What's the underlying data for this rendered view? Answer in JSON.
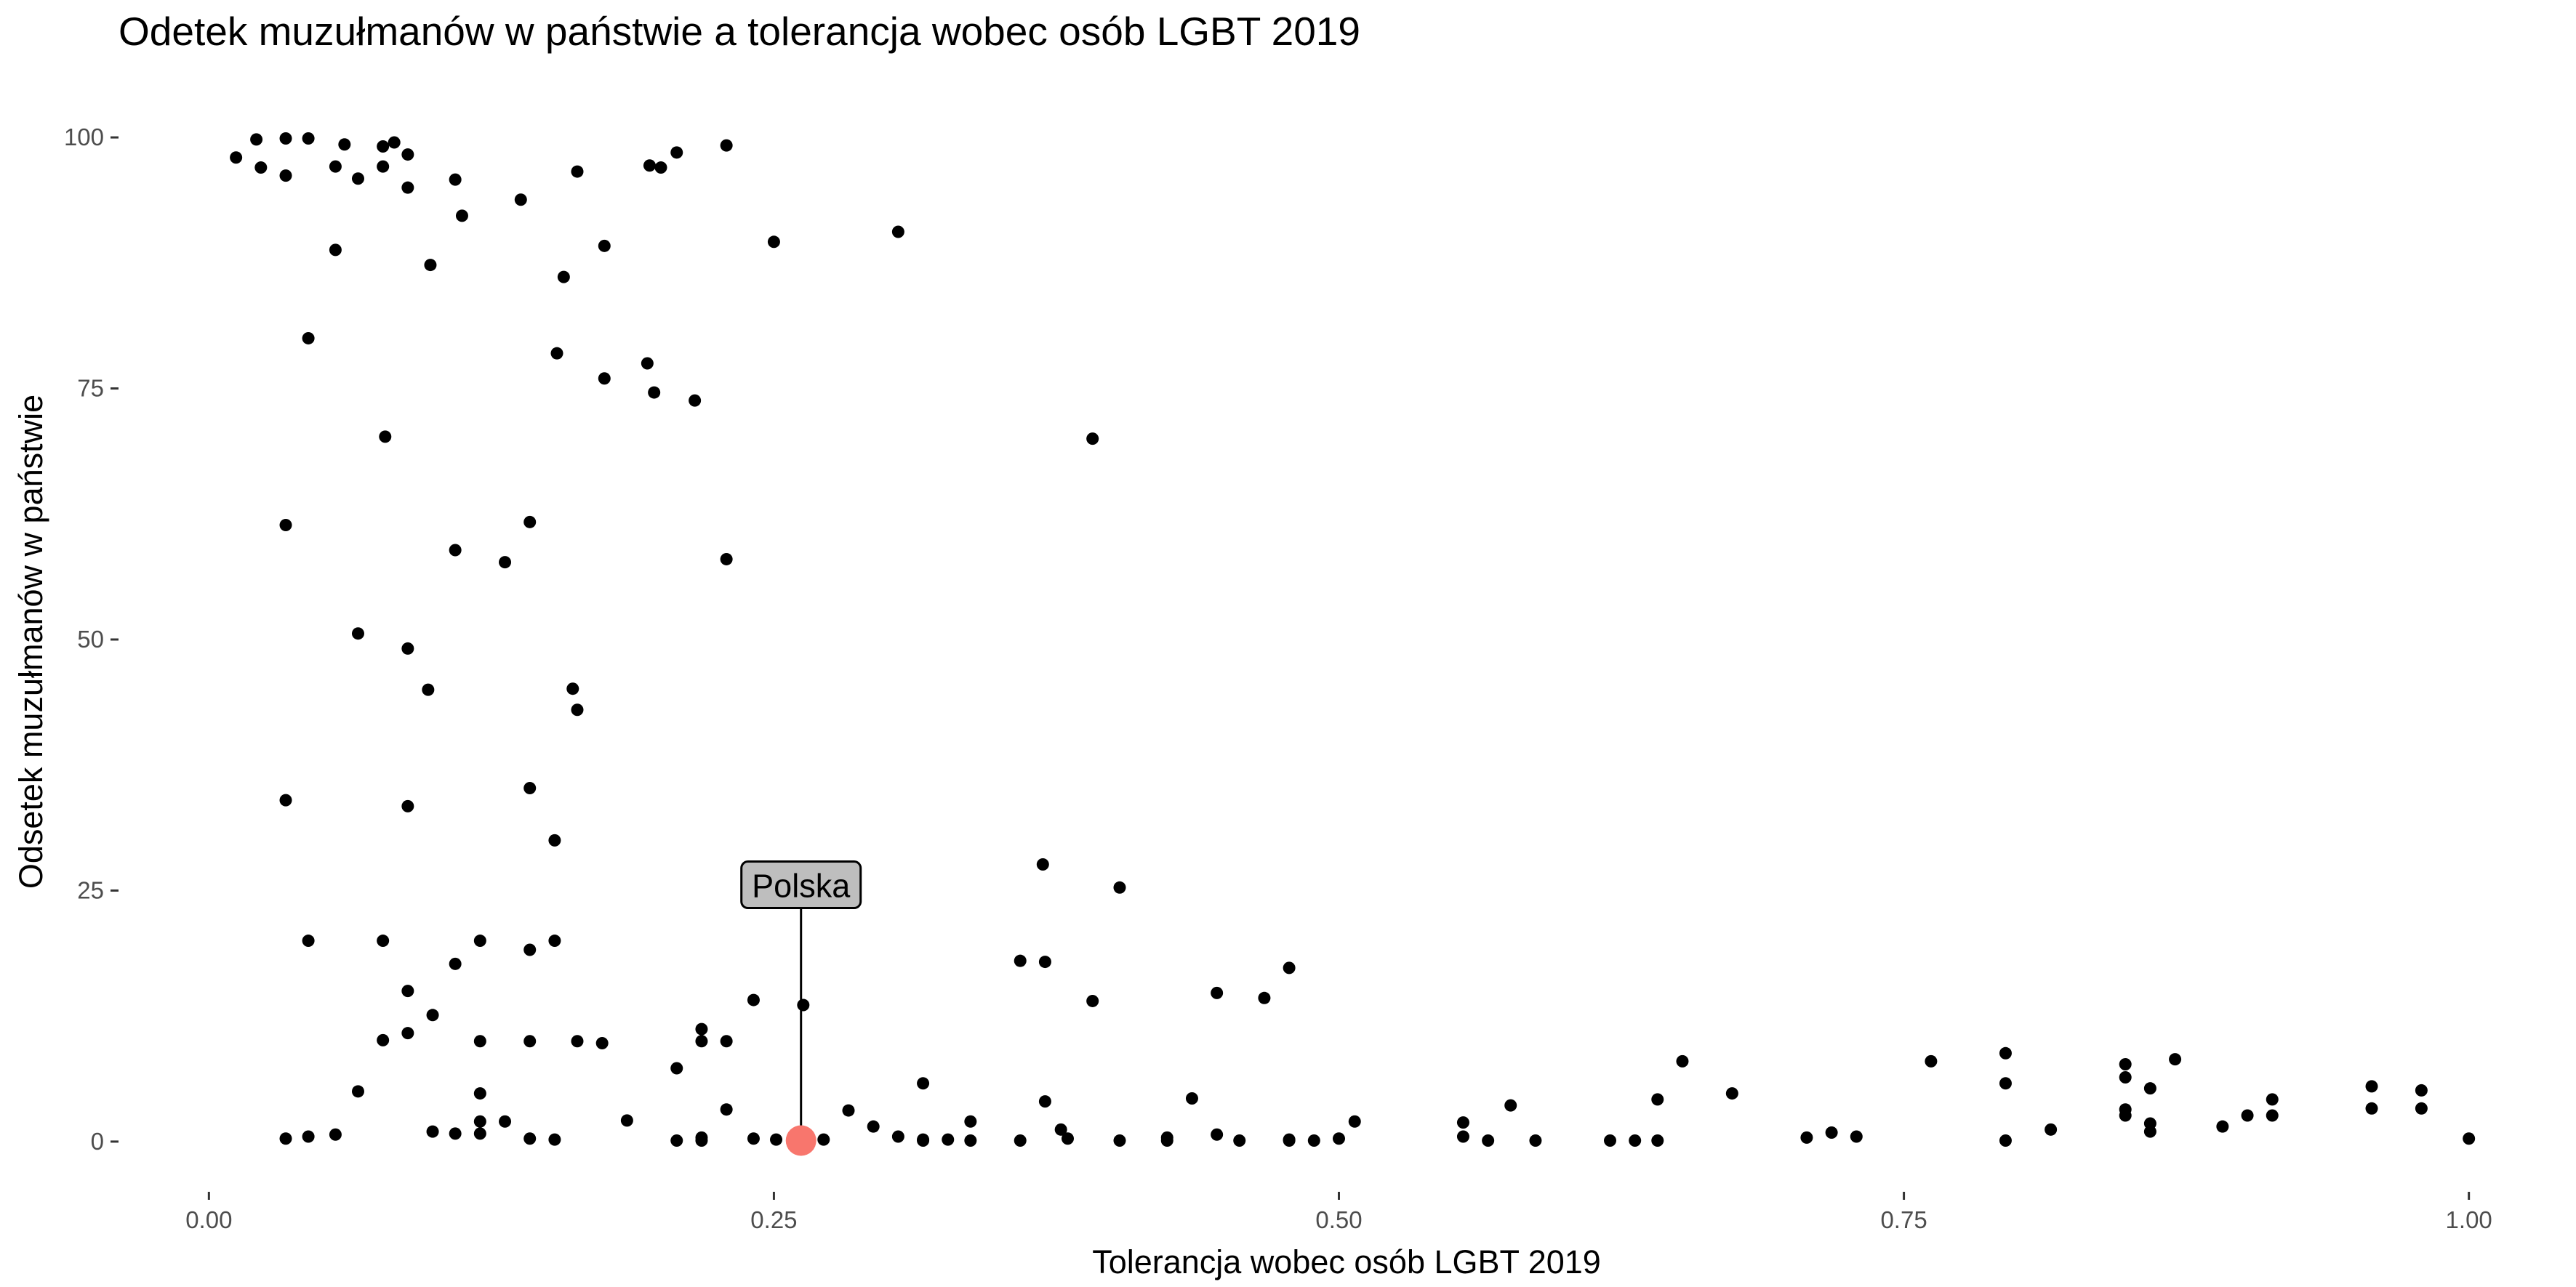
{
  "chart_data": {
    "type": "scatter",
    "title": "Odetek muzułmanów w państwie a tolerancja wobec osób LGBT 2019",
    "xlabel": "Tolerancja wobec osób LGBT 2019",
    "ylabel": "Odsetek muzułmanów w państwie",
    "xlim": [
      -0.04,
      1.04
    ],
    "ylim": [
      -5,
      105
    ],
    "x_ticks": [
      0.0,
      0.25,
      0.5,
      0.75,
      1.0
    ],
    "x_tick_labels": [
      "0.00",
      "0.25",
      "0.50",
      "0.75",
      "1.00"
    ],
    "y_ticks": [
      0,
      25,
      50,
      75,
      100
    ],
    "y_tick_labels": [
      "0",
      "25",
      "50",
      "75",
      "100"
    ],
    "grid": false,
    "colors": {
      "points": "#000000",
      "highlight": "#F8766D",
      "label_fill": "#bebebe"
    },
    "highlight": {
      "label": "Polska",
      "x": 0.262,
      "y": 0.1,
      "label_y": 25.5
    },
    "points": [
      [
        0.012,
        98.0
      ],
      [
        0.021,
        99.8
      ],
      [
        0.023,
        97.0
      ],
      [
        0.034,
        99.9
      ],
      [
        0.034,
        96.2
      ],
      [
        0.044,
        99.9
      ],
      [
        0.056,
        97.1
      ],
      [
        0.06,
        99.3
      ],
      [
        0.066,
        95.9
      ],
      [
        0.077,
        99.1
      ],
      [
        0.082,
        99.5
      ],
      [
        0.077,
        97.1
      ],
      [
        0.088,
        98.3
      ],
      [
        0.088,
        95.0
      ],
      [
        0.109,
        95.8
      ],
      [
        0.112,
        92.2
      ],
      [
        0.138,
        93.8
      ],
      [
        0.163,
        96.6
      ],
      [
        0.195,
        97.2
      ],
      [
        0.2,
        97.0
      ],
      [
        0.207,
        98.5
      ],
      [
        0.229,
        99.2
      ],
      [
        0.056,
        88.8
      ],
      [
        0.098,
        87.3
      ],
      [
        0.157,
        86.1
      ],
      [
        0.175,
        89.2
      ],
      [
        0.25,
        89.6
      ],
      [
        0.305,
        90.6
      ],
      [
        0.044,
        80.0
      ],
      [
        0.154,
        78.5
      ],
      [
        0.175,
        76.0
      ],
      [
        0.194,
        77.5
      ],
      [
        0.197,
        74.6
      ],
      [
        0.215,
        73.8
      ],
      [
        0.078,
        70.2
      ],
      [
        0.391,
        70.0
      ],
      [
        0.034,
        61.4
      ],
      [
        0.142,
        61.7
      ],
      [
        0.109,
        58.9
      ],
      [
        0.131,
        57.7
      ],
      [
        0.229,
        58.0
      ],
      [
        0.066,
        50.6
      ],
      [
        0.088,
        49.1
      ],
      [
        0.097,
        45.0
      ],
      [
        0.161,
        45.1
      ],
      [
        0.163,
        43.0
      ],
      [
        0.034,
        34.0
      ],
      [
        0.142,
        35.2
      ],
      [
        0.088,
        33.4
      ],
      [
        0.153,
        30.0
      ],
      [
        0.369,
        27.6
      ],
      [
        0.403,
        25.3
      ],
      [
        0.044,
        20.0
      ],
      [
        0.077,
        20.0
      ],
      [
        0.12,
        20.0
      ],
      [
        0.153,
        20.0
      ],
      [
        0.109,
        17.7
      ],
      [
        0.142,
        19.1
      ],
      [
        0.359,
        18.0
      ],
      [
        0.37,
        17.9
      ],
      [
        0.478,
        17.3
      ],
      [
        0.088,
        15.0
      ],
      [
        0.241,
        14.1
      ],
      [
        0.263,
        13.6
      ],
      [
        0.391,
        14.0
      ],
      [
        0.446,
        14.8
      ],
      [
        0.467,
        14.3
      ],
      [
        0.099,
        12.6
      ],
      [
        0.077,
        10.1
      ],
      [
        0.088,
        10.8
      ],
      [
        0.12,
        10.0
      ],
      [
        0.142,
        10.0
      ],
      [
        0.163,
        10.0
      ],
      [
        0.174,
        9.8
      ],
      [
        0.218,
        11.2
      ],
      [
        0.218,
        10.0
      ],
      [
        0.229,
        10.0
      ],
      [
        0.207,
        7.3
      ],
      [
        0.316,
        5.8
      ],
      [
        0.066,
        5.0
      ],
      [
        0.12,
        4.8
      ],
      [
        0.37,
        4.0
      ],
      [
        0.435,
        4.3
      ],
      [
        0.652,
        8.0
      ],
      [
        0.674,
        4.8
      ],
      [
        0.762,
        8.0
      ],
      [
        0.795,
        8.8
      ],
      [
        0.795,
        5.8
      ],
      [
        0.848,
        7.7
      ],
      [
        0.848,
        6.4
      ],
      [
        0.859,
        5.3
      ],
      [
        0.87,
        8.2
      ],
      [
        0.957,
        5.5
      ],
      [
        0.979,
        5.1
      ],
      [
        0.913,
        4.2
      ],
      [
        0.641,
        4.2
      ],
      [
        0.576,
        3.6
      ],
      [
        0.229,
        3.2
      ],
      [
        0.283,
        3.1
      ],
      [
        0.337,
        2.0
      ],
      [
        0.12,
        2.0
      ],
      [
        0.131,
        2.0
      ],
      [
        0.185,
        2.1
      ],
      [
        0.294,
        1.5
      ],
      [
        0.507,
        2.0
      ],
      [
        0.555,
        1.9
      ],
      [
        0.848,
        3.2
      ],
      [
        0.848,
        2.6
      ],
      [
        0.859,
        1.8
      ],
      [
        0.891,
        1.5
      ],
      [
        0.902,
        2.6
      ],
      [
        0.913,
        2.6
      ],
      [
        0.957,
        3.3
      ],
      [
        0.979,
        3.3
      ],
      [
        0.815,
        1.2
      ],
      [
        0.859,
        1.0
      ],
      [
        0.377,
        1.2
      ],
      [
        0.034,
        0.3
      ],
      [
        0.044,
        0.5
      ],
      [
        0.056,
        0.7
      ],
      [
        0.099,
        1.0
      ],
      [
        0.109,
        0.8
      ],
      [
        0.12,
        0.8
      ],
      [
        0.142,
        0.3
      ],
      [
        0.153,
        0.2
      ],
      [
        0.207,
        0.1
      ],
      [
        0.218,
        0.4
      ],
      [
        0.218,
        0.1
      ],
      [
        0.241,
        0.3
      ],
      [
        0.251,
        0.2
      ],
      [
        0.272,
        0.2
      ],
      [
        0.305,
        0.5
      ],
      [
        0.316,
        0.1
      ],
      [
        0.316,
        0.2
      ],
      [
        0.327,
        0.2
      ],
      [
        0.337,
        0.1
      ],
      [
        0.359,
        0.1
      ],
      [
        0.38,
        0.3
      ],
      [
        0.403,
        0.1
      ],
      [
        0.424,
        0.1
      ],
      [
        0.424,
        0.4
      ],
      [
        0.446,
        0.7
      ],
      [
        0.456,
        0.1
      ],
      [
        0.478,
        0.1
      ],
      [
        0.478,
        0.2
      ],
      [
        0.489,
        0.1
      ],
      [
        0.5,
        0.3
      ],
      [
        0.555,
        0.5
      ],
      [
        0.566,
        0.1
      ],
      [
        0.587,
        0.1
      ],
      [
        0.62,
        0.1
      ],
      [
        0.631,
        0.1
      ],
      [
        0.641,
        0.1
      ],
      [
        0.707,
        0.4
      ],
      [
        0.718,
        0.9
      ],
      [
        0.729,
        0.5
      ],
      [
        0.795,
        0.1
      ],
      [
        1.0,
        0.3
      ]
    ]
  }
}
